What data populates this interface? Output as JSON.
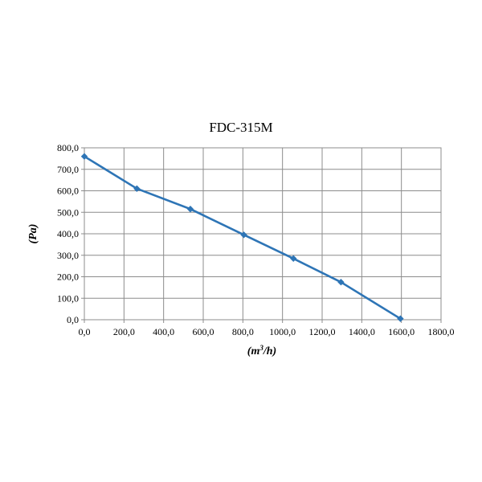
{
  "chart_data": {
    "type": "line",
    "title": "FDC-315M",
    "xlabel": {
      "prefix": "(m",
      "sup": "3",
      "suffix": "/h)"
    },
    "ylabel": "(Pa)",
    "xlim": [
      0,
      1800
    ],
    "ylim": [
      0,
      800
    ],
    "x_ticks": [
      "0,0",
      "200,0",
      "400,0",
      "600,0",
      "800,0",
      "1000,0",
      "1200,0",
      "1400,0",
      "1600,0",
      "1800,0"
    ],
    "y_ticks": [
      "0,0",
      "100,0",
      "200,0",
      "300,0",
      "400,0",
      "500,0",
      "600,0",
      "700,0",
      "800,0"
    ],
    "grid": true,
    "legend": "none",
    "marker": "diamond",
    "series": [
      {
        "x": [
          0,
          265,
          535,
          805,
          1055,
          1295,
          1595
        ],
        "values": [
          760,
          610,
          515,
          395,
          285,
          175,
          5
        ],
        "color": "#2e75b6"
      }
    ]
  }
}
